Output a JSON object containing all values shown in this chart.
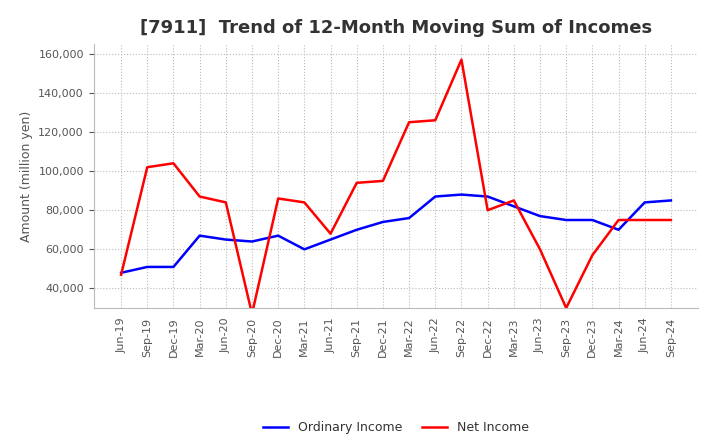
{
  "title": "[7911]  Trend of 12-Month Moving Sum of Incomes",
  "ylabel": "Amount (million yen)",
  "ylim": [
    30000,
    165000
  ],
  "yticks": [
    40000,
    60000,
    80000,
    100000,
    120000,
    140000,
    160000
  ],
  "x_labels": [
    "Jun-19",
    "Sep-19",
    "Dec-19",
    "Mar-20",
    "Jun-20",
    "Sep-20",
    "Dec-20",
    "Mar-21",
    "Jun-21",
    "Sep-21",
    "Dec-21",
    "Mar-22",
    "Jun-22",
    "Sep-22",
    "Dec-22",
    "Mar-23",
    "Jun-23",
    "Sep-23",
    "Dec-23",
    "Mar-24",
    "Jun-24",
    "Sep-24"
  ],
  "ordinary_income": [
    48000,
    51000,
    51000,
    67000,
    65000,
    64000,
    67000,
    60000,
    65000,
    70000,
    74000,
    76000,
    87000,
    88000,
    87000,
    82000,
    77000,
    75000,
    75000,
    70000,
    84000,
    85000
  ],
  "net_income": [
    47000,
    102000,
    104000,
    87000,
    84000,
    27000,
    86000,
    84000,
    68000,
    94000,
    95000,
    125000,
    126000,
    157000,
    80000,
    85000,
    60000,
    30000,
    57000,
    75000,
    75000,
    75000
  ],
  "ordinary_color": "#0000ff",
  "net_color": "#ff0000",
  "line_width": 1.8,
  "bg_color": "#ffffff",
  "plot_bg_color": "#ffffff",
  "grid_color": "#bbbbbb",
  "title_fontsize": 13,
  "title_color": "#333333",
  "axis_label_fontsize": 9,
  "tick_fontsize": 8,
  "legend_fontsize": 9
}
